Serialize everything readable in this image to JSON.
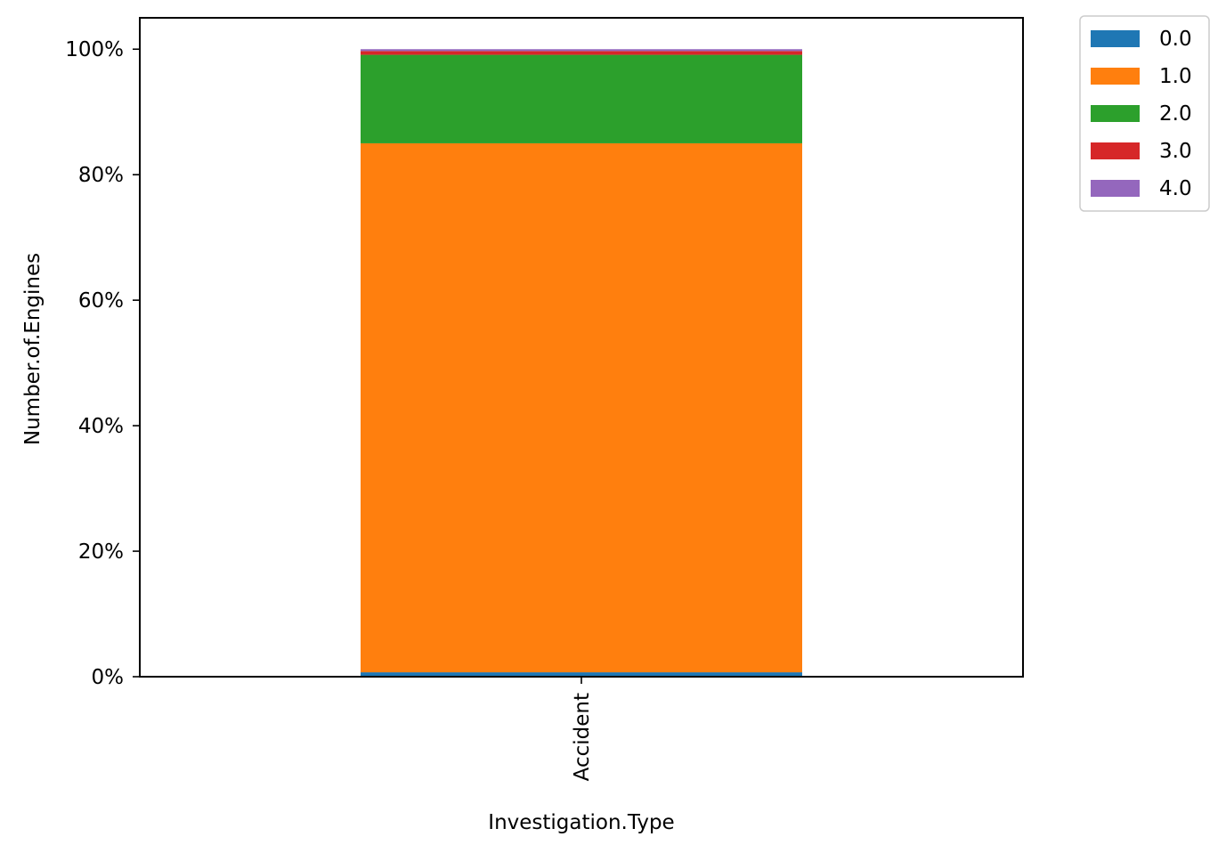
{
  "chart_data": {
    "type": "bar",
    "stacked": true,
    "normalized": true,
    "categories": [
      "Accident"
    ],
    "series": [
      {
        "name": "0.0",
        "color": "#1f77b4",
        "values": [
          0.7
        ]
      },
      {
        "name": "1.0",
        "color": "#ff7f0e",
        "values": [
          84.3
        ]
      },
      {
        "name": "2.0",
        "color": "#2ca02c",
        "values": [
          14.1
        ]
      },
      {
        "name": "3.0",
        "color": "#d62728",
        "values": [
          0.6
        ]
      },
      {
        "name": "4.0",
        "color": "#9467bd",
        "values": [
          0.3
        ]
      }
    ],
    "xlabel": "Investigation.Type",
    "ylabel": "Number.of.Engines",
    "ylim": [
      0,
      105
    ],
    "yticks": [
      0,
      20,
      40,
      60,
      80,
      100
    ],
    "ytick_labels": [
      "0%",
      "20%",
      "40%",
      "60%",
      "80%",
      "100%"
    ],
    "grid": false,
    "legend_position": "outside-top-right"
  }
}
